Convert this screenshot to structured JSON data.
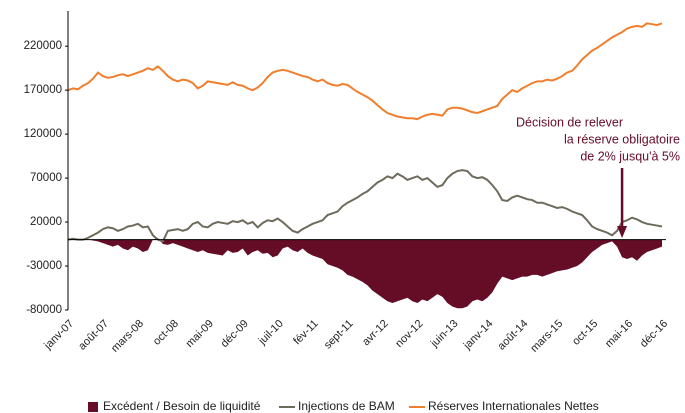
{
  "chart_data": {
    "type": "line",
    "categories": [
      "janv-07",
      null,
      null,
      null,
      null,
      null,
      null,
      "août-07",
      null,
      null,
      null,
      null,
      null,
      null,
      "mars-08",
      null,
      null,
      null,
      null,
      null,
      null,
      "oct-08",
      null,
      null,
      null,
      null,
      null,
      null,
      "mai-09",
      null,
      null,
      null,
      null,
      null,
      null,
      "déc-09",
      null,
      null,
      null,
      null,
      null,
      null,
      "juil-10",
      null,
      null,
      null,
      null,
      null,
      null,
      "fév-11",
      null,
      null,
      null,
      null,
      null,
      null,
      "sept-11",
      null,
      null,
      null,
      null,
      null,
      null,
      "avr-12",
      null,
      null,
      null,
      null,
      null,
      null,
      "nov-12",
      null,
      null,
      null,
      null,
      null,
      null,
      "juin-13",
      null,
      null,
      null,
      null,
      null,
      null,
      "janv-14",
      null,
      null,
      null,
      null,
      null,
      null,
      "août-14",
      null,
      null,
      null,
      null,
      null,
      null,
      "mars-15",
      null,
      null,
      null,
      null,
      null,
      null,
      "oct-15",
      null,
      null,
      null,
      null,
      null,
      null,
      "mai-16",
      null,
      null,
      null,
      null,
      null,
      null,
      "déc-16"
    ],
    "series": [
      {
        "name": "Excédent / Besoin de liquidité",
        "color": "#650c27",
        "area": true,
        "values": [
          0,
          0,
          0,
          0,
          0,
          -1000,
          -2000,
          -4000,
          -6000,
          -8000,
          -6000,
          -10000,
          -12000,
          -8000,
          -10000,
          -14000,
          -12000,
          0,
          2000,
          -5000,
          -6000,
          -4000,
          -6000,
          -8000,
          -10000,
          -12000,
          -14000,
          -12000,
          -15000,
          -16000,
          -17000,
          -18000,
          -12000,
          -15000,
          -14000,
          -10000,
          -18000,
          -14000,
          -12000,
          -16000,
          -15000,
          -20000,
          -18000,
          -10000,
          -8000,
          -12000,
          -14000,
          -10000,
          -15000,
          -18000,
          -20000,
          -22000,
          -28000,
          -30000,
          -32000,
          -35000,
          -40000,
          -42000,
          -45000,
          -48000,
          -52000,
          -58000,
          -62000,
          -66000,
          -70000,
          -72000,
          -70000,
          -68000,
          -66000,
          -70000,
          -72000,
          -68000,
          -70000,
          -66000,
          -62000,
          -65000,
          -72000,
          -76000,
          -78000,
          -78000,
          -76000,
          -70000,
          -68000,
          -70000,
          -66000,
          -60000,
          -50000,
          -42000,
          -44000,
          -46000,
          -44000,
          -42000,
          -42000,
          -40000,
          -40000,
          -42000,
          -40000,
          -38000,
          -36000,
          -35000,
          -34000,
          -32000,
          -30000,
          -26000,
          -20000,
          -14000,
          -10000,
          -6000,
          -4000,
          -2000,
          -8000,
          -20000,
          -22000,
          -20000,
          -24000,
          -18000,
          -14000,
          -12000,
          -10000,
          -8000
        ]
      },
      {
        "name": "Injections de BAM",
        "color": "#6e6b5c",
        "area": false,
        "values": [
          0,
          1000,
          0,
          0,
          2000,
          5000,
          8000,
          12000,
          14000,
          13000,
          10000,
          12000,
          15000,
          16000,
          18000,
          14000,
          15000,
          5000,
          0,
          -2000,
          10000,
          11000,
          12000,
          10000,
          12000,
          18000,
          20000,
          15000,
          14000,
          18000,
          20000,
          19000,
          18000,
          21000,
          20000,
          22000,
          18000,
          20000,
          14000,
          19000,
          22000,
          21000,
          24000,
          20000,
          15000,
          10000,
          8000,
          12000,
          15000,
          18000,
          20000,
          22000,
          28000,
          30000,
          32000,
          38000,
          42000,
          45000,
          48000,
          52000,
          55000,
          60000,
          65000,
          68000,
          72000,
          70000,
          75000,
          72000,
          68000,
          70000,
          72000,
          68000,
          70000,
          65000,
          60000,
          62000,
          70000,
          75000,
          78000,
          79000,
          78000,
          72000,
          70000,
          71000,
          68000,
          62000,
          55000,
          45000,
          44000,
          48000,
          50000,
          48000,
          46000,
          45000,
          42000,
          42000,
          40000,
          38000,
          36000,
          37000,
          35000,
          32000,
          30000,
          28000,
          22000,
          15000,
          12000,
          10000,
          8000,
          5000,
          10000,
          20000,
          22000,
          25000,
          23000,
          20000,
          18000,
          17000,
          16000,
          15000
        ]
      },
      {
        "name": "Réserves Internationales Nettes",
        "color": "#f07f2d",
        "area": false,
        "values": [
          170000,
          172000,
          171000,
          175000,
          178000,
          183000,
          190000,
          186000,
          184000,
          185000,
          187000,
          188000,
          186000,
          188000,
          190000,
          192000,
          195000,
          193000,
          197000,
          192000,
          186000,
          182000,
          180000,
          182000,
          181000,
          178000,
          172000,
          175000,
          180000,
          179000,
          178000,
          177000,
          176000,
          179000,
          176000,
          175000,
          172000,
          170000,
          173000,
          178000,
          185000,
          190000,
          192000,
          193000,
          192000,
          190000,
          188000,
          186000,
          185000,
          182000,
          180000,
          182000,
          178000,
          176000,
          175000,
          177000,
          176000,
          172000,
          168000,
          165000,
          162000,
          158000,
          153000,
          148000,
          144000,
          142000,
          140000,
          139000,
          138000,
          138000,
          137000,
          140000,
          142000,
          143000,
          142000,
          141000,
          148000,
          150000,
          150000,
          149000,
          147000,
          145000,
          144000,
          146000,
          148000,
          150000,
          152000,
          160000,
          165000,
          170000,
          168000,
          172000,
          175000,
          178000,
          180000,
          180000,
          182000,
          181000,
          183000,
          186000,
          190000,
          192000,
          198000,
          205000,
          210000,
          215000,
          218000,
          222000,
          226000,
          230000,
          233000,
          236000,
          240000,
          242000,
          243000,
          242000,
          246000,
          245000,
          244000,
          246000
        ]
      }
    ],
    "ylim": [
      -80000,
      260000
    ],
    "yticks": [
      -80000,
      -30000,
      20000,
      70000,
      120000,
      170000,
      220000
    ],
    "annotation": [
      "Décision de relever",
      "la réserve obligatoire",
      "de 2% jusqu'à 5%"
    ]
  }
}
